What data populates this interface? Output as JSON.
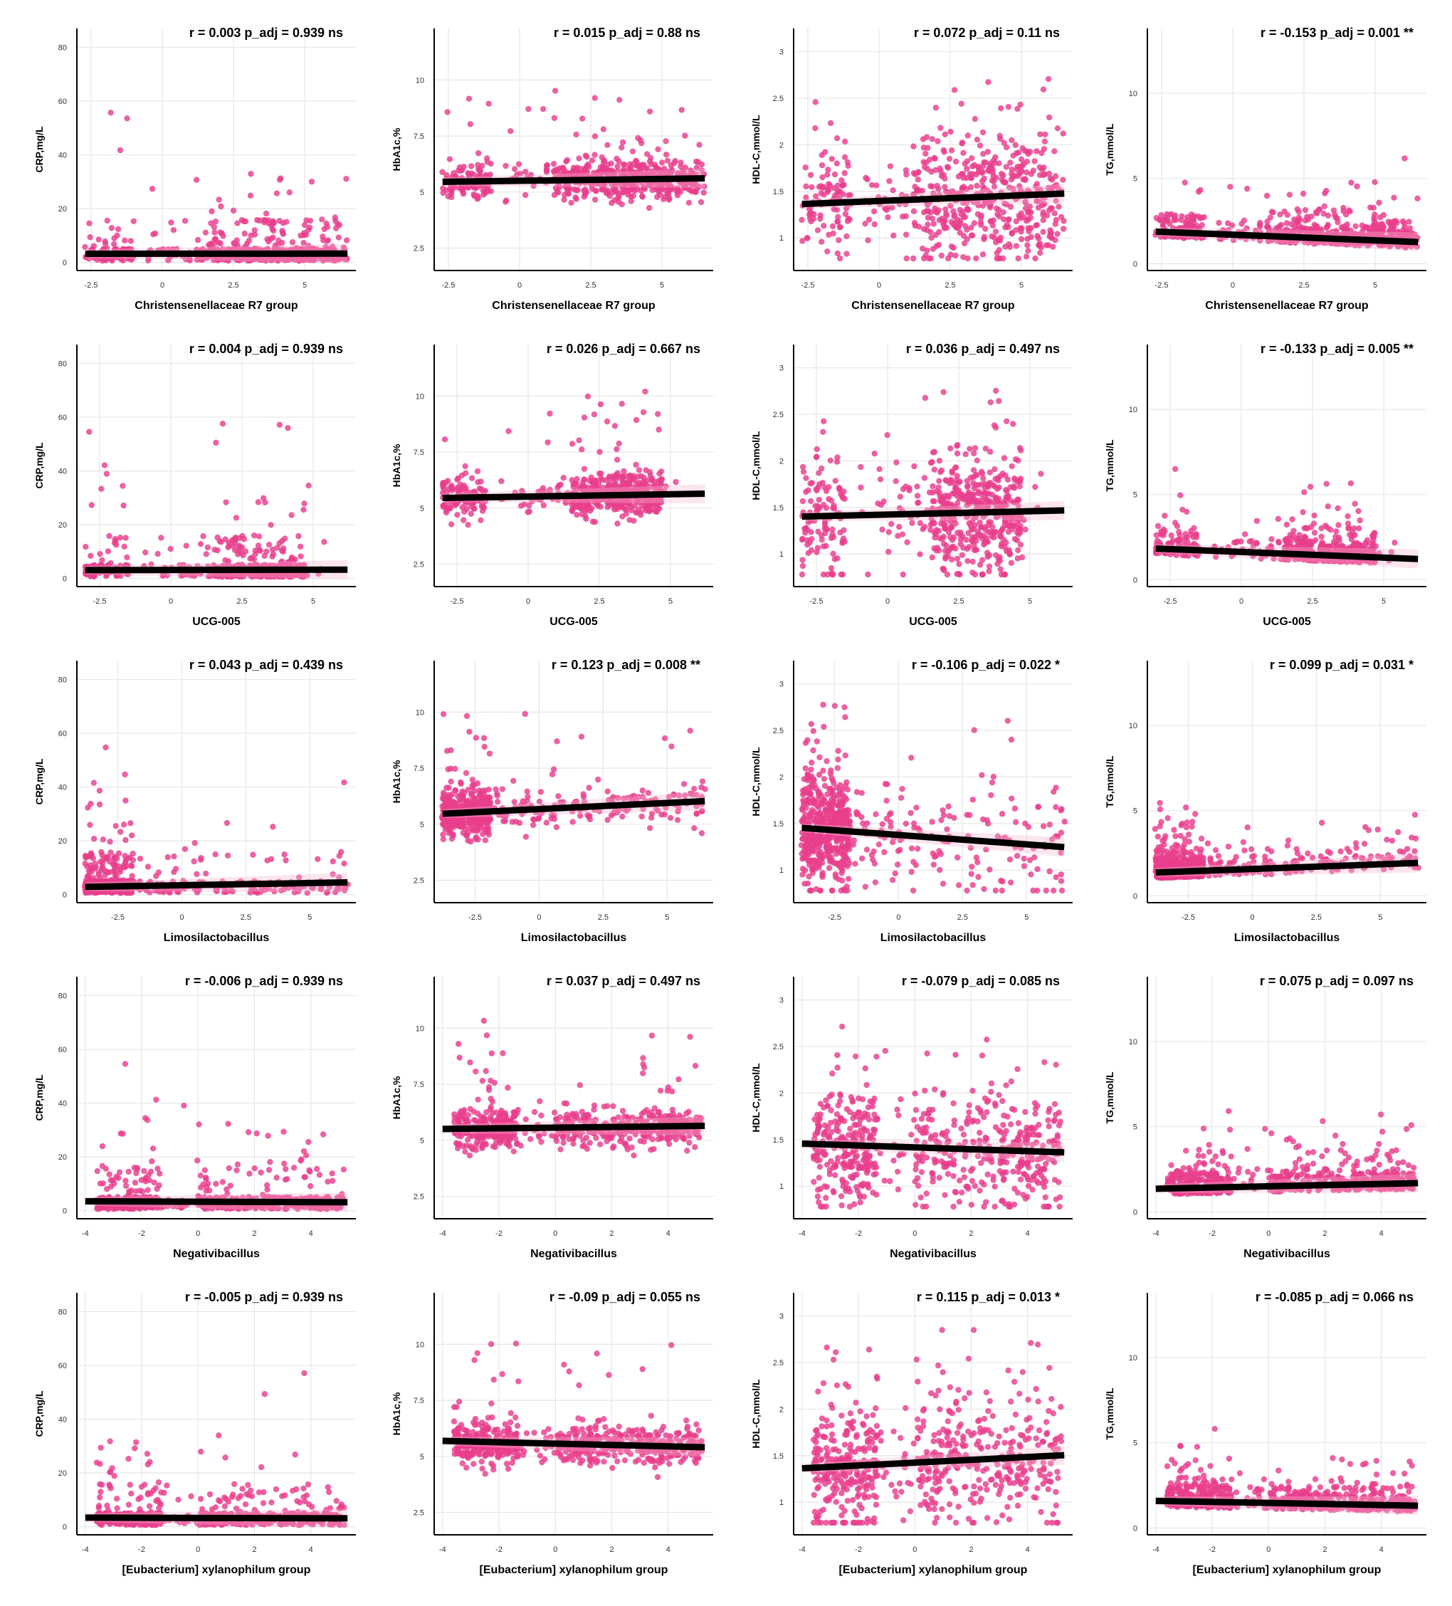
{
  "colors": {
    "point": "#e83e8c",
    "fit": "#000000",
    "grid": "#e6e6e6"
  },
  "chart_data": [
    {
      "type": "scatter",
      "row": 0,
      "col": 0,
      "xlabel": "Christensenellaceae R7 group",
      "ylabel": "CRP,mg/L",
      "annotation": "r = 0.003 p_adj = 0.939 ns",
      "xlim": [
        -3,
        6.8
      ],
      "ylim": [
        -3,
        87
      ],
      "xticks": [
        -2.5,
        0,
        2.5,
        5
      ],
      "yticks": [
        0,
        20,
        40,
        60,
        80
      ],
      "fit": [
        3.2,
        3.3
      ],
      "dist": "bimodal_a"
    },
    {
      "type": "scatter",
      "row": 0,
      "col": 1,
      "xlabel": "Christensenellaceae R7 group",
      "ylabel": "HbA1c,%",
      "annotation": "r = 0.015 p_adj = 0.88 ns",
      "xlim": [
        -3,
        6.8
      ],
      "ylim": [
        1.5,
        12.3
      ],
      "xticks": [
        -2.5,
        0,
        2.5,
        5
      ],
      "yticks": [
        2.5,
        5,
        7.5,
        10
      ],
      "fit": [
        5.45,
        5.62
      ],
      "dist": "bimodal_a"
    },
    {
      "type": "scatter",
      "row": 0,
      "col": 2,
      "xlabel": "Christensenellaceae R7 group",
      "ylabel": "HDL-C,mmol/L",
      "annotation": "r = 0.072 p_adj = 0.11 ns",
      "xlim": [
        -3,
        6.8
      ],
      "ylim": [
        0.65,
        3.25
      ],
      "xticks": [
        -2.5,
        0,
        2.5,
        5
      ],
      "yticks": [
        1,
        1.5,
        2,
        2.5,
        3
      ],
      "fit": [
        1.36,
        1.48
      ],
      "dist": "bimodal_a"
    },
    {
      "type": "scatter",
      "row": 0,
      "col": 3,
      "xlabel": "Christensenellaceae R7 group",
      "ylabel": "TG,mmol/L",
      "annotation": "r = -0.153 p_adj = 0.001 **",
      "xlim": [
        -3,
        6.8
      ],
      "ylim": [
        -0.4,
        13.8
      ],
      "xticks": [
        -2.5,
        0,
        2.5,
        5
      ],
      "yticks": [
        0,
        5,
        10
      ],
      "fit": [
        1.9,
        1.25
      ],
      "dist": "bimodal_a"
    },
    {
      "type": "scatter",
      "row": 1,
      "col": 0,
      "xlabel": "UCG-005",
      "ylabel": "CRP,mg/L",
      "annotation": "r = 0.004 p_adj = 0.939 ns",
      "xlim": [
        -3.3,
        6.5
      ],
      "ylim": [
        -3,
        87
      ],
      "xticks": [
        -2.5,
        0,
        2.5,
        5
      ],
      "yticks": [
        0,
        20,
        40,
        60,
        80
      ],
      "fit": [
        3.1,
        3.3
      ],
      "dist": "bimodal_b"
    },
    {
      "type": "scatter",
      "row": 1,
      "col": 1,
      "xlabel": "UCG-005",
      "ylabel": "HbA1c,%",
      "annotation": "r = 0.026 p_adj = 0.667 ns",
      "xlim": [
        -3.3,
        6.5
      ],
      "ylim": [
        1.5,
        12.3
      ],
      "xticks": [
        -2.5,
        0,
        2.5,
        5
      ],
      "yticks": [
        2.5,
        5,
        7.5,
        10
      ],
      "fit": [
        5.45,
        5.65
      ],
      "dist": "bimodal_b"
    },
    {
      "type": "scatter",
      "row": 1,
      "col": 2,
      "xlabel": "UCG-005",
      "ylabel": "HDL-C,mmol/L",
      "annotation": "r = 0.036 p_adj = 0.497 ns",
      "xlim": [
        -3.3,
        6.5
      ],
      "ylim": [
        0.65,
        3.25
      ],
      "xticks": [
        -2.5,
        0,
        2.5,
        5
      ],
      "yticks": [
        1,
        1.5,
        2,
        2.5,
        3
      ],
      "fit": [
        1.4,
        1.47
      ],
      "dist": "bimodal_b"
    },
    {
      "type": "scatter",
      "row": 1,
      "col": 3,
      "xlabel": "UCG-005",
      "ylabel": "TG,mmol/L",
      "annotation": "r = -0.133 p_adj = 0.005 **",
      "xlim": [
        -3.3,
        6.5
      ],
      "ylim": [
        -0.4,
        13.8
      ],
      "xticks": [
        -2.5,
        0,
        2.5,
        5
      ],
      "yticks": [
        0,
        5,
        10
      ],
      "fit": [
        1.85,
        1.2
      ],
      "dist": "bimodal_b"
    },
    {
      "type": "scatter",
      "row": 2,
      "col": 0,
      "xlabel": "Limosilactobacillus",
      "ylabel": "CRP,mg/L",
      "annotation": "r = 0.043 p_adj = 0.439 ns",
      "xlim": [
        -4.1,
        6.8
      ],
      "ylim": [
        -3,
        87
      ],
      "xticks": [
        -2.5,
        0,
        2.5,
        5
      ],
      "yticks": [
        0,
        20,
        40,
        60,
        80
      ],
      "fit": [
        2.8,
        4.6
      ],
      "dist": "skew"
    },
    {
      "type": "scatter",
      "row": 2,
      "col": 1,
      "xlabel": "Limosilactobacillus",
      "ylabel": "HbA1c,%",
      "annotation": "r = 0.123 p_adj = 0.008 **",
      "xlim": [
        -4.1,
        6.8
      ],
      "ylim": [
        1.5,
        12.3
      ],
      "xticks": [
        -2.5,
        0,
        2.5,
        5
      ],
      "yticks": [
        2.5,
        5,
        7.5,
        10
      ],
      "fit": [
        5.45,
        6.05
      ],
      "dist": "skew"
    },
    {
      "type": "scatter",
      "row": 2,
      "col": 2,
      "xlabel": "Limosilactobacillus",
      "ylabel": "HDL-C,mmol/L",
      "annotation": "r = -0.106 p_adj = 0.022 *",
      "xlim": [
        -4.1,
        6.8
      ],
      "ylim": [
        0.65,
        3.25
      ],
      "xticks": [
        -2.5,
        0,
        2.5,
        5
      ],
      "yticks": [
        1,
        1.5,
        2,
        2.5,
        3
      ],
      "fit": [
        1.46,
        1.24
      ],
      "dist": "skew"
    },
    {
      "type": "scatter",
      "row": 2,
      "col": 3,
      "xlabel": "Limosilactobacillus",
      "ylabel": "TG,mmol/L",
      "annotation": "r = 0.099 p_adj = 0.031 *",
      "xlim": [
        -4.1,
        6.8
      ],
      "ylim": [
        -0.4,
        13.8
      ],
      "xticks": [
        -2.5,
        0,
        2.5,
        5
      ],
      "yticks": [
        0,
        5,
        10
      ],
      "fit": [
        1.35,
        1.95
      ],
      "dist": "skew"
    },
    {
      "type": "scatter",
      "row": 3,
      "col": 0,
      "xlabel": "Negativibacillus",
      "ylabel": "CRP,mg/L",
      "annotation": "r = -0.006 p_adj = 0.939 ns",
      "xlim": [
        -4.3,
        5.6
      ],
      "ylim": [
        -3,
        87
      ],
      "xticks": [
        -4,
        -2,
        0,
        2,
        4
      ],
      "yticks": [
        0,
        20,
        40,
        60,
        80
      ],
      "fit": [
        3.5,
        3.1
      ],
      "dist": "bimodal_c"
    },
    {
      "type": "scatter",
      "row": 3,
      "col": 1,
      "xlabel": "Negativibacillus",
      "ylabel": "HbA1c,%",
      "annotation": "r = 0.037 p_adj = 0.497 ns",
      "xlim": [
        -4.3,
        5.6
      ],
      "ylim": [
        1.5,
        12.3
      ],
      "xticks": [
        -4,
        -2,
        0,
        2,
        4
      ],
      "yticks": [
        2.5,
        5,
        7.5,
        10
      ],
      "fit": [
        5.5,
        5.65
      ],
      "dist": "bimodal_c"
    },
    {
      "type": "scatter",
      "row": 3,
      "col": 2,
      "xlabel": "Negativibacillus",
      "ylabel": "HDL-C,mmol/L",
      "annotation": "r = -0.079 p_adj = 0.085 ns",
      "xlim": [
        -4.3,
        5.6
      ],
      "ylim": [
        0.65,
        3.25
      ],
      "xticks": [
        -4,
        -2,
        0,
        2,
        4
      ],
      "yticks": [
        1,
        1.5,
        2,
        2.5,
        3
      ],
      "fit": [
        1.46,
        1.36
      ],
      "dist": "bimodal_c"
    },
    {
      "type": "scatter",
      "row": 3,
      "col": 3,
      "xlabel": "Negativibacillus",
      "ylabel": "TG,mmol/L",
      "annotation": "r = 0.075 p_adj = 0.097 ns",
      "xlim": [
        -4.3,
        5.6
      ],
      "ylim": [
        -0.4,
        13.8
      ],
      "xticks": [
        -4,
        -2,
        0,
        2,
        4
      ],
      "yticks": [
        0,
        5,
        10
      ],
      "fit": [
        1.35,
        1.7
      ],
      "dist": "bimodal_c"
    },
    {
      "type": "scatter",
      "row": 4,
      "col": 0,
      "xlabel": "[Eubacterium] xylanophilum group",
      "ylabel": "CRP,mg/L",
      "annotation": "r = -0.005 p_adj = 0.939 ns",
      "xlim": [
        -4.3,
        5.6
      ],
      "ylim": [
        -3,
        87
      ],
      "xticks": [
        -4,
        -2,
        0,
        2,
        4
      ],
      "yticks": [
        0,
        20,
        40,
        60,
        80
      ],
      "fit": [
        3.4,
        3.1
      ],
      "dist": "bimodal_c"
    },
    {
      "type": "scatter",
      "row": 4,
      "col": 1,
      "xlabel": "[Eubacterium] xylanophilum group",
      "ylabel": "HbA1c,%",
      "annotation": "r = -0.09 p_adj = 0.055 ns",
      "xlim": [
        -4.3,
        5.6
      ],
      "ylim": [
        1.5,
        12.3
      ],
      "xticks": [
        -4,
        -2,
        0,
        2,
        4
      ],
      "yticks": [
        2.5,
        5,
        7.5,
        10
      ],
      "fit": [
        5.7,
        5.4
      ],
      "dist": "bimodal_c"
    },
    {
      "type": "scatter",
      "row": 4,
      "col": 2,
      "xlabel": "[Eubacterium] xylanophilum group",
      "ylabel": "HDL-C,mmol/L",
      "annotation": "r = 0.115 p_adj = 0.013 *",
      "xlim": [
        -4.3,
        5.6
      ],
      "ylim": [
        0.65,
        3.25
      ],
      "xticks": [
        -4,
        -2,
        0,
        2,
        4
      ],
      "yticks": [
        1,
        1.5,
        2,
        2.5,
        3
      ],
      "fit": [
        1.36,
        1.51
      ],
      "dist": "bimodal_c"
    },
    {
      "type": "scatter",
      "row": 4,
      "col": 3,
      "xlabel": "[Eubacterium] xylanophilum group",
      "ylabel": "TG,mmol/L",
      "annotation": "r = -0.085 p_adj = 0.066 ns",
      "xlim": [
        -4.3,
        5.6
      ],
      "ylim": [
        -0.4,
        13.8
      ],
      "xticks": [
        -4,
        -2,
        0,
        2,
        4
      ],
      "yticks": [
        0,
        5,
        10
      ],
      "fit": [
        1.6,
        1.3
      ],
      "dist": "bimodal_c"
    }
  ]
}
